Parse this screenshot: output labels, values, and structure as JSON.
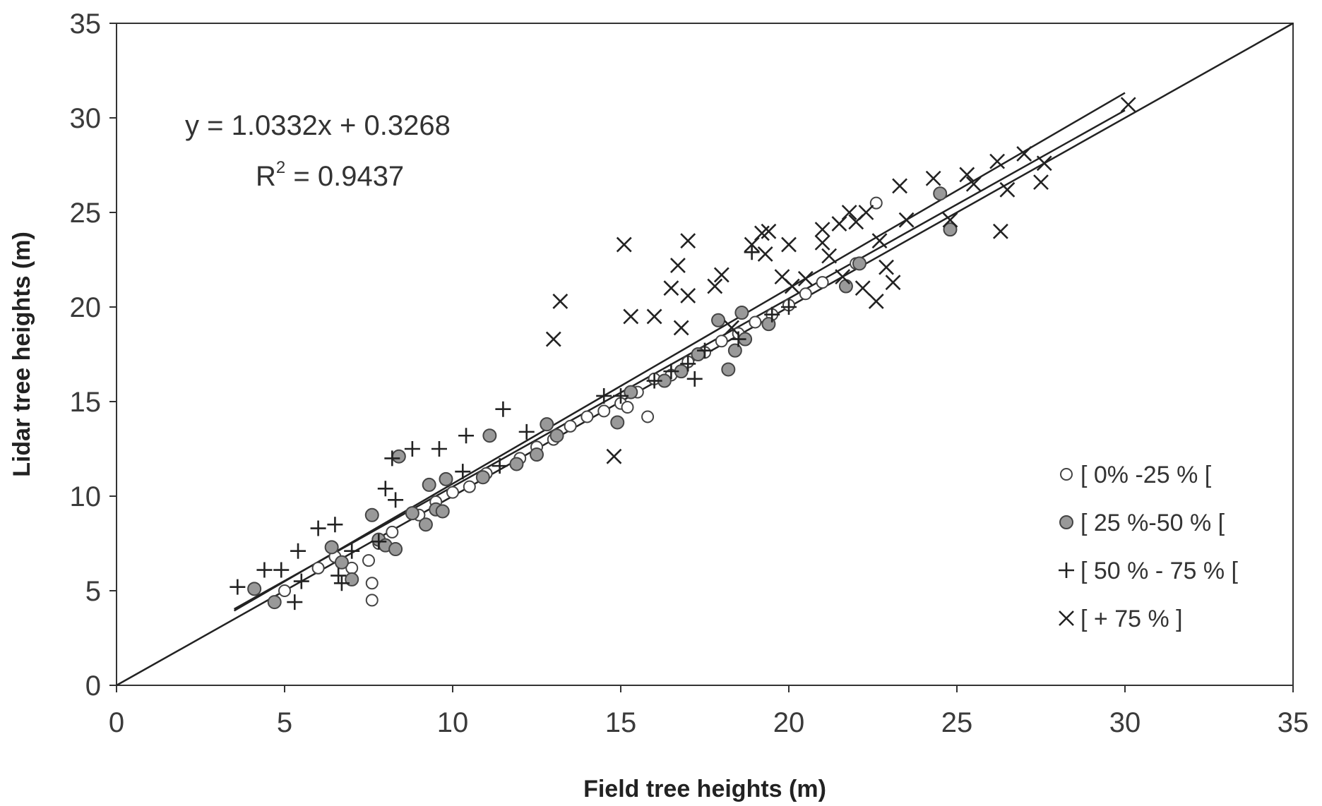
{
  "chart_data": {
    "type": "scatter",
    "xlabel": "Field tree heights (m)",
    "ylabel": "Lidar tree heights (m)",
    "xlim": [
      0,
      35
    ],
    "ylim": [
      0,
      35
    ],
    "xticks": [
      "0",
      "5",
      "10",
      "15",
      "20",
      "25",
      "30",
      "35"
    ],
    "yticks": [
      "0",
      "5",
      "10",
      "15",
      "20",
      "25",
      "30",
      "35"
    ],
    "grid": false,
    "legend_position": "right",
    "equation": "y = 1.0332x + 0.3268",
    "r2_prefix": "R",
    "r2_exponent": "2",
    "r2_value": " = 0.9437",
    "reference_line": [
      [
        0,
        0
      ],
      [
        35,
        35
      ]
    ],
    "fit_lines": [
      {
        "x": [
          3.5,
          30.0
        ],
        "slope": 1.0332,
        "intercept": 0.3268
      },
      {
        "x": [
          3.5,
          30.0
        ],
        "slope": 0.995,
        "intercept": 0.55
      }
    ],
    "series": [
      {
        "name": "[ 0% -25 % [",
        "marker": "open-circle",
        "points": [
          [
            5.0,
            5.0
          ],
          [
            6.0,
            6.2
          ],
          [
            6.5,
            6.8
          ],
          [
            7.0,
            6.2
          ],
          [
            7.5,
            6.6
          ],
          [
            7.6,
            5.4
          ],
          [
            7.6,
            4.5
          ],
          [
            7.8,
            7.5
          ],
          [
            8.2,
            8.1
          ],
          [
            9.0,
            9.0
          ],
          [
            9.5,
            9.7
          ],
          [
            10.0,
            10.2
          ],
          [
            10.5,
            10.5
          ],
          [
            11.0,
            11.2
          ],
          [
            12.0,
            12.0
          ],
          [
            12.5,
            12.6
          ],
          [
            13.0,
            13.0
          ],
          [
            13.5,
            13.7
          ],
          [
            14.0,
            14.2
          ],
          [
            14.5,
            14.5
          ],
          [
            15.0,
            14.9
          ],
          [
            15.2,
            14.7
          ],
          [
            15.5,
            15.5
          ],
          [
            15.8,
            14.2
          ],
          [
            16.0,
            16.2
          ],
          [
            16.5,
            16.4
          ],
          [
            17.0,
            17.1
          ],
          [
            17.5,
            17.6
          ],
          [
            18.0,
            18.2
          ],
          [
            18.5,
            18.6
          ],
          [
            19.0,
            19.2
          ],
          [
            19.5,
            19.6
          ],
          [
            20.0,
            20.1
          ],
          [
            20.5,
            20.7
          ],
          [
            21.0,
            21.3
          ],
          [
            22.0,
            22.3
          ],
          [
            22.6,
            25.5
          ]
        ]
      },
      {
        "name": "[ 25 %-50 % [",
        "marker": "filled-circle",
        "points": [
          [
            4.1,
            5.1
          ],
          [
            4.7,
            4.4
          ],
          [
            6.4,
            7.3
          ],
          [
            6.7,
            6.5
          ],
          [
            7.0,
            5.6
          ],
          [
            7.6,
            9.0
          ],
          [
            7.8,
            7.7
          ],
          [
            8.0,
            7.4
          ],
          [
            8.3,
            7.2
          ],
          [
            8.4,
            12.1
          ],
          [
            8.8,
            9.1
          ],
          [
            9.2,
            8.5
          ],
          [
            9.3,
            10.6
          ],
          [
            9.5,
            9.3
          ],
          [
            9.7,
            9.2
          ],
          [
            9.8,
            10.9
          ],
          [
            10.9,
            11.0
          ],
          [
            11.1,
            13.2
          ],
          [
            11.9,
            11.7
          ],
          [
            12.5,
            12.2
          ],
          [
            12.8,
            13.8
          ],
          [
            13.1,
            13.2
          ],
          [
            14.9,
            13.9
          ],
          [
            15.3,
            15.5
          ],
          [
            16.3,
            16.1
          ],
          [
            16.8,
            16.6
          ],
          [
            17.3,
            17.5
          ],
          [
            17.9,
            19.3
          ],
          [
            18.2,
            16.7
          ],
          [
            18.4,
            17.7
          ],
          [
            18.7,
            18.3
          ],
          [
            18.6,
            19.7
          ],
          [
            19.4,
            19.1
          ],
          [
            21.7,
            21.1
          ],
          [
            22.1,
            22.3
          ],
          [
            24.5,
            26.0
          ],
          [
            24.8,
            24.1
          ]
        ]
      },
      {
        "name": "[ 50 % - 75 % [",
        "marker": "plus",
        "points": [
          [
            3.6,
            5.2
          ],
          [
            4.4,
            6.1
          ],
          [
            4.9,
            6.1
          ],
          [
            5.3,
            4.4
          ],
          [
            5.4,
            7.1
          ],
          [
            5.5,
            5.5
          ],
          [
            6.0,
            8.3
          ],
          [
            6.5,
            8.5
          ],
          [
            6.6,
            5.8
          ],
          [
            6.7,
            5.4
          ],
          [
            7.0,
            7.1
          ],
          [
            7.8,
            7.6
          ],
          [
            8.0,
            10.4
          ],
          [
            8.2,
            12.0
          ],
          [
            8.3,
            9.8
          ],
          [
            8.8,
            12.5
          ],
          [
            9.6,
            12.5
          ],
          [
            10.3,
            11.3
          ],
          [
            10.4,
            13.2
          ],
          [
            11.4,
            11.6
          ],
          [
            11.5,
            14.6
          ],
          [
            12.2,
            13.4
          ],
          [
            14.5,
            15.3
          ],
          [
            15.0,
            15.3
          ],
          [
            16.0,
            16.1
          ],
          [
            16.5,
            16.6
          ],
          [
            17.0,
            17.0
          ],
          [
            17.2,
            16.2
          ],
          [
            17.5,
            17.7
          ],
          [
            18.5,
            18.3
          ],
          [
            18.9,
            22.9
          ],
          [
            19.5,
            19.6
          ],
          [
            20.0,
            20.0
          ]
        ]
      },
      {
        "name": "[ + 75 % ]",
        "marker": "cross",
        "points": [
          [
            13.0,
            18.3
          ],
          [
            13.2,
            20.3
          ],
          [
            14.8,
            12.1
          ],
          [
            15.1,
            23.3
          ],
          [
            15.3,
            19.5
          ],
          [
            16.0,
            19.5
          ],
          [
            16.5,
            21.0
          ],
          [
            16.7,
            22.2
          ],
          [
            17.0,
            23.5
          ],
          [
            17.0,
            20.6
          ],
          [
            16.8,
            18.9
          ],
          [
            17.8,
            21.1
          ],
          [
            18.0,
            21.7
          ],
          [
            18.3,
            18.9
          ],
          [
            18.9,
            23.3
          ],
          [
            19.2,
            23.9
          ],
          [
            19.4,
            24.0
          ],
          [
            19.3,
            22.8
          ],
          [
            19.8,
            21.6
          ],
          [
            20.0,
            23.3
          ],
          [
            20.1,
            21.1
          ],
          [
            20.5,
            21.5
          ],
          [
            21.0,
            24.1
          ],
          [
            21.0,
            23.4
          ],
          [
            21.2,
            22.7
          ],
          [
            21.5,
            24.4
          ],
          [
            21.8,
            25.0
          ],
          [
            22.0,
            24.5
          ],
          [
            22.3,
            25.0
          ],
          [
            22.6,
            20.3
          ],
          [
            22.9,
            22.1
          ],
          [
            23.1,
            21.3
          ],
          [
            23.3,
            26.4
          ],
          [
            23.5,
            24.6
          ],
          [
            24.3,
            26.8
          ],
          [
            24.8,
            24.6
          ],
          [
            25.3,
            27.0
          ],
          [
            25.5,
            26.5
          ],
          [
            26.2,
            27.7
          ],
          [
            26.3,
            24.0
          ],
          [
            26.5,
            26.2
          ],
          [
            27.0,
            28.1
          ],
          [
            27.5,
            26.6
          ],
          [
            27.6,
            27.6
          ],
          [
            30.1,
            30.7
          ],
          [
            22.2,
            21.0
          ],
          [
            22.7,
            23.5
          ],
          [
            21.6,
            21.6
          ]
        ]
      }
    ]
  }
}
